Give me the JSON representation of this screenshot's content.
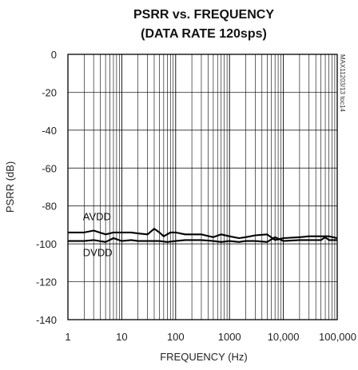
{
  "chart_data": {
    "type": "line",
    "title_lines": [
      "PSRR vs. FREQUENCY",
      "(DATA RATE 120sps)"
    ],
    "xlabel": "FREQUENCY (Hz)",
    "ylabel": "PSRR (dB)",
    "x_scale": "log",
    "xlim": [
      1,
      100000
    ],
    "ylim": [
      -140,
      0
    ],
    "x_ticks": [
      1,
      10,
      100,
      1000,
      10000,
      100000
    ],
    "x_tick_labels": [
      "1",
      "10",
      "100",
      "1000",
      "10,000",
      "100,000"
    ],
    "y_ticks": [
      0,
      -20,
      -40,
      -60,
      -80,
      -100,
      -120,
      -140
    ],
    "y_tick_labels": [
      "0",
      "-20",
      "-40",
      "-60",
      "-80",
      "-100",
      "-120",
      "-140"
    ],
    "grid": true,
    "side_id": "MAX11203/13 toc14",
    "series": [
      {
        "name": "AVDD",
        "x": [
          1,
          2,
          3,
          5,
          7,
          10,
          15,
          20,
          30,
          40,
          50,
          60,
          80,
          100,
          150,
          200,
          300,
          500,
          700,
          1000,
          1500,
          2000,
          3000,
          5000,
          7000,
          10000,
          20000,
          30000,
          50000,
          70000,
          100000
        ],
        "y": [
          -94,
          -94,
          -93,
          -95,
          -94,
          -94,
          -94,
          -94.5,
          -95,
          -92,
          -94,
          -96,
          -94,
          -94,
          -95,
          -95,
          -95,
          -96.5,
          -95,
          -96,
          -97,
          -96.5,
          -95.5,
          -95,
          -98,
          -97,
          -96.5,
          -96,
          -96,
          -96,
          -97
        ]
      },
      {
        "name": "DVDD",
        "x": [
          1,
          2,
          3,
          5,
          7,
          10,
          15,
          20,
          30,
          50,
          70,
          100,
          150,
          200,
          300,
          500,
          700,
          1000,
          1500,
          2000,
          3000,
          5000,
          7000,
          10000,
          20000,
          30000,
          50000,
          60000,
          70000,
          100000
        ],
        "y": [
          -98.5,
          -98.5,
          -98,
          -99,
          -97,
          -98.5,
          -98,
          -98.5,
          -98.5,
          -98.5,
          -99,
          -98.5,
          -98,
          -98,
          -98,
          -98.5,
          -99,
          -98.5,
          -99,
          -98.5,
          -98.5,
          -99,
          -96.5,
          -98.5,
          -98,
          -98,
          -98,
          -96.5,
          -98,
          -98
        ]
      }
    ],
    "annotations": [
      {
        "text": "AVDD",
        "x": 1.9,
        "y": -87.5
      },
      {
        "text": "DVDD",
        "x": 1.9,
        "y": -106.5
      }
    ]
  }
}
